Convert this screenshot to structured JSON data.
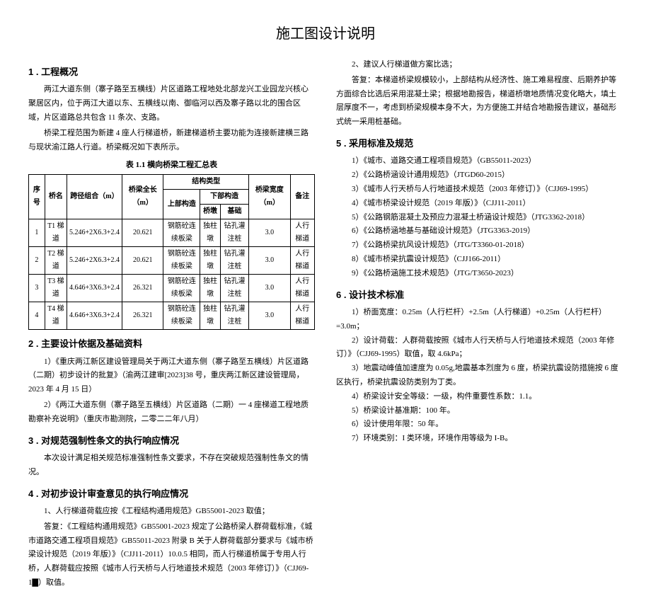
{
  "title": "施工图设计说明",
  "left": {
    "s1": {
      "heading": "1 . 工程概况",
      "p1": "两江大道东侧（寨子路至五横线）片区道路工程地处北部龙兴工业园龙兴核心聚居区内，位于两江大道以东、五横线以南、御临河以西及寨子路以北的围合区域，片区道路总共包含 11 条次、支路。",
      "p2": "桥梁工程范围为新建 4 座人行梯道桥，新建梯道桥主要功能为连接新建横三路与现状渝江路人行道。桥梁概况如下表所示。"
    },
    "table": {
      "caption": "表 1.1 横向桥梁工程汇总表",
      "head": {
        "c1": "序号",
        "c2": "桥名",
        "c3": "跨径组合（m）",
        "c4": "桥梁全长（m）",
        "c5": "结构类型",
        "c5a": "上部构造",
        "c5b": "下部构造",
        "c5b1": "桥墩",
        "c5b2": "基础",
        "c6": "桥梁宽度（m）",
        "c7": "备注"
      },
      "rows": [
        {
          "n": "1",
          "name": "T1 梯道",
          "span": "5.246+2X6.3+2.4",
          "len": "20.621",
          "up": "钢筋砼连续板梁",
          "pier": "独柱墩",
          "found": "钻孔灌注桩",
          "w": "3.0",
          "note": "人行梯道"
        },
        {
          "n": "2",
          "name": "T2 梯道",
          "span": "5.246+2X6.3+2.4",
          "len": "20.621",
          "up": "钢筋砼连续板梁",
          "pier": "独柱墩",
          "found": "钻孔灌注桩",
          "w": "3.0",
          "note": "人行梯道"
        },
        {
          "n": "3",
          "name": "T3 梯道",
          "span": "4.646+3X6.3+2.4",
          "len": "26.321",
          "up": "钢筋砼连续板梁",
          "pier": "独柱墩",
          "found": "钻孔灌注桩",
          "w": "3.0",
          "note": "人行梯道"
        },
        {
          "n": "4",
          "name": "T4 梯道",
          "span": "4.646+3X6.3+2.4",
          "len": "26.321",
          "up": "钢筋砼连续板梁",
          "pier": "独柱墩",
          "found": "钻孔灌注桩",
          "w": "3.0",
          "note": "人行梯道"
        }
      ]
    },
    "s2": {
      "heading": "2 . 主要设计依据及基础资料",
      "i1": "1）《重庆两江新区建设管理局关于两江大道东侧（寨子路至五横线）片区道路（二期）初步设计的批复》（渝两江建审[2023]38 号，重庆两江新区建设管理局，2023 年 4 月 15 日）",
      "i2": "2）《两江大道东侧（寨子路至五横线）片区道路（二期）一 4 座梯道工程地质勘察补充说明》（重庆市勘测院，二零二二年八月）"
    },
    "s3": {
      "heading": "3 . 对规范强制性条文的执行响应情况",
      "p": "本次设计满足相关规范标准强制性条文要求，不存在突破规范强制性条文的情况。"
    },
    "s4": {
      "heading": "4 . 对初步设计审查意见的执行响应情况",
      "i1": "1、人行梯道荷载应按《工程结构通用规范》GB55001-2023 取值；",
      "p1": "答复：《工程结构通用规范》GB55001-2023 规定了公路桥梁人群荷载标准，《城市道路交通工程项目规范》GB55011-2023 附录 B 关于人群荷载部分要求与《城市桥梁设计规范（2019 年版）》（CJJ11-2011）10.0.5 相同，而人行梯道桥属于专用人行桥，人群荷载应按照《城市人行天桥与人行地道技术规范（2003 年修订）》（CJJ69-1▇）取值。"
    }
  },
  "right": {
    "r1": "2、建议人行梯道做方案比选；",
    "r2": "答复：本梯道桥梁规模较小，上部结构从经济性、施工难易程度、后期养护等方面综合比选后采用混凝土梁；根据地勘报告，梯道桥墩地质情况变化略大，填土层厚度不一，考虑到桥梁规模本身不大，为方便施工并结合地勘报告建议，基础形式统一采用桩基础。",
    "s5": {
      "heading": "5 . 采用标准及规范",
      "items": [
        "1）《城市、道路交通工程项目规范》（GB55011-2023）",
        "2）《公路桥涵设计通用规范》（JTGD60-2015）",
        "3）《城市人行天桥与人行地道技术规范（2003 年修订）》（CJJ69-1995）",
        "4）《城市桥梁设计规范（2019 年版）》（CJJ11-2011）",
        "5）《公路钢筋混凝土及预应力混凝土桥涵设计规范》（JTG3362-2018）",
        "6）《公路桥涵地基与基础设计规范》（JTG3363-2019）",
        "7）《公路桥梁抗风设计规范》（JTG/T3360-01-2018）",
        "8）《城市桥梁抗震设计规范》（CJJ166-2011）",
        "9）《公路桥涵施工技术规范》（JTG/T3650-2023）"
      ]
    },
    "s6": {
      "heading": "6 . 设计技术标准",
      "i1": "1）桥面宽度：0.25m（人行栏杆）+2.5m（人行梯道）+0.25m（人行栏杆）=3.0m；",
      "i2": "2）设计荷载：人群荷载按照《城市人行天桥与人行地道技术规范（2003 年修订）》（CJJ69-1995）取值，取 4.6kPa；",
      "i3": "3）地震动峰值加速度为 0.05g,地震基本烈度为 6 度，桥梁抗震设防措施按 6 度区执行，桥梁抗震设防类别为丁类。",
      "i4": "4）桥梁设计安全等级：一级，构件重要性系数：1.1。",
      "i5": "5）桥梁设计基准期：100 年。",
      "i6": "6）设计使用年限：50 年。",
      "i7": "7）环境类别：I 类环境，环境作用等级为 I-B。"
    }
  }
}
